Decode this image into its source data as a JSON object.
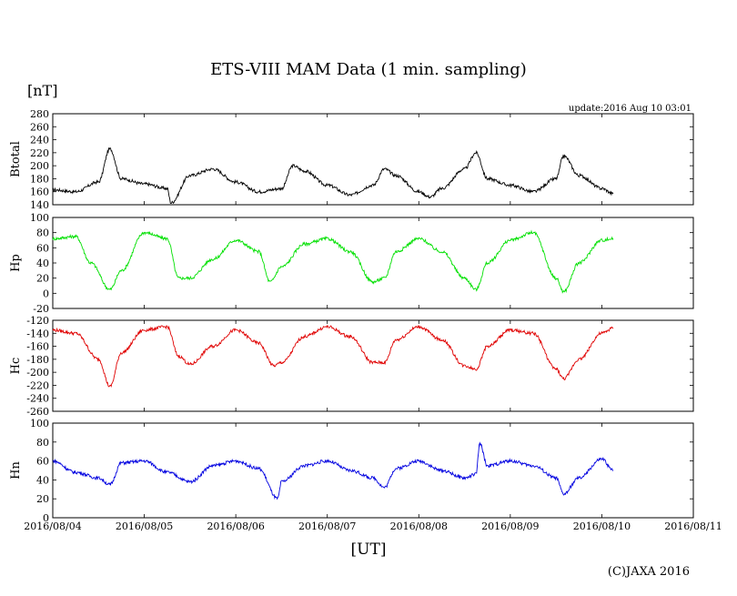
{
  "title": "ETS-VIII MAM Data (1 min. sampling)",
  "yunit": "[nT]",
  "update": "update:2016 Aug 10 03:01",
  "xunit": "[UT]",
  "copyright": "(C)JAXA 2016",
  "chart_data": [
    {
      "type": "line",
      "ylabel": "Btotal",
      "ylim": [
        140,
        280
      ],
      "yticks": [
        140,
        160,
        180,
        200,
        220,
        240,
        260,
        280
      ],
      "color": "#000000",
      "x": [
        "2016/08/04 00:00",
        "2016/08/04 06:00",
        "2016/08/04 12:00",
        "2016/08/04 15:00",
        "2016/08/04 18:00",
        "2016/08/05 00:00",
        "2016/08/05 06:00",
        "2016/08/05 07:00",
        "2016/08/05 12:00",
        "2016/08/05 18:00",
        "2016/08/06 00:00",
        "2016/08/06 06:00",
        "2016/08/06 12:00",
        "2016/08/06 15:00",
        "2016/08/06 18:00",
        "2016/08/07 00:00",
        "2016/08/07 06:00",
        "2016/08/07 12:00",
        "2016/08/07 15:00",
        "2016/08/07 18:00",
        "2016/08/08 00:00",
        "2016/08/08 03:00",
        "2016/08/08 06:00",
        "2016/08/08 12:00",
        "2016/08/08 15:00",
        "2016/08/08 18:00",
        "2016/08/09 00:00",
        "2016/08/09 06:00",
        "2016/08/09 12:00",
        "2016/08/09 14:00",
        "2016/08/09 18:00",
        "2016/08/10 00:00",
        "2016/08/10 03:00"
      ],
      "values": [
        163,
        160,
        175,
        226,
        180,
        172,
        165,
        143,
        185,
        195,
        175,
        160,
        165,
        200,
        192,
        170,
        155,
        170,
        195,
        185,
        160,
        152,
        165,
        195,
        220,
        180,
        170,
        160,
        180,
        215,
        185,
        165,
        157
      ]
    },
    {
      "type": "line",
      "ylabel": "Hp",
      "ylim": [
        -20,
        100
      ],
      "yticks": [
        -20,
        0,
        20,
        40,
        60,
        80,
        100
      ],
      "color": "#00e000",
      "x": [
        "2016/08/04 00:00",
        "2016/08/04 06:00",
        "2016/08/04 10:00",
        "2016/08/04 15:00",
        "2016/08/04 18:00",
        "2016/08/05 00:00",
        "2016/08/05 06:00",
        "2016/08/05 09:00",
        "2016/08/05 12:00",
        "2016/08/05 18:00",
        "2016/08/06 00:00",
        "2016/08/06 06:00",
        "2016/08/06 09:00",
        "2016/08/06 12:00",
        "2016/08/06 18:00",
        "2016/08/07 00:00",
        "2016/08/07 06:00",
        "2016/08/07 12:00",
        "2016/08/07 15:00",
        "2016/08/07 18:00",
        "2016/08/08 00:00",
        "2016/08/08 06:00",
        "2016/08/08 12:00",
        "2016/08/08 15:00",
        "2016/08/08 18:00",
        "2016/08/09 00:00",
        "2016/08/09 06:00",
        "2016/08/09 12:00",
        "2016/08/09 14:00",
        "2016/08/09 18:00",
        "2016/08/10 00:00",
        "2016/08/10 03:00"
      ],
      "values": [
        72,
        75,
        40,
        5,
        30,
        80,
        72,
        20,
        20,
        45,
        70,
        55,
        15,
        35,
        65,
        72,
        55,
        15,
        20,
        55,
        72,
        55,
        20,
        5,
        40,
        70,
        80,
        20,
        2,
        40,
        70,
        72
      ]
    },
    {
      "type": "line",
      "ylabel": "Hc",
      "ylim": [
        -260,
        -120
      ],
      "yticks": [
        -260,
        -240,
        -220,
        -200,
        -180,
        -160,
        -140,
        -120
      ],
      "color": "#e00000",
      "x": [
        "2016/08/04 00:00",
        "2016/08/04 06:00",
        "2016/08/04 12:00",
        "2016/08/04 15:00",
        "2016/08/04 18:00",
        "2016/08/05 00:00",
        "2016/08/05 06:00",
        "2016/08/05 09:00",
        "2016/08/05 12:00",
        "2016/08/05 18:00",
        "2016/08/06 00:00",
        "2016/08/06 06:00",
        "2016/08/06 10:00",
        "2016/08/06 12:00",
        "2016/08/06 18:00",
        "2016/08/07 00:00",
        "2016/08/07 06:00",
        "2016/08/07 12:00",
        "2016/08/07 15:00",
        "2016/08/07 18:00",
        "2016/08/08 00:00",
        "2016/08/08 06:00",
        "2016/08/08 12:00",
        "2016/08/08 15:00",
        "2016/08/08 18:00",
        "2016/08/09 00:00",
        "2016/08/09 06:00",
        "2016/08/09 12:00",
        "2016/08/09 14:00",
        "2016/08/09 18:00",
        "2016/08/10 00:00",
        "2016/08/10 03:00"
      ],
      "values": [
        -135,
        -140,
        -180,
        -222,
        -170,
        -135,
        -130,
        -175,
        -188,
        -160,
        -135,
        -155,
        -190,
        -185,
        -145,
        -130,
        -145,
        -185,
        -185,
        -150,
        -130,
        -150,
        -190,
        -195,
        -160,
        -135,
        -140,
        -195,
        -210,
        -180,
        -140,
        -132
      ]
    },
    {
      "type": "line",
      "ylabel": "Hn",
      "ylim": [
        0,
        100
      ],
      "yticks": [
        0,
        20,
        40,
        60,
        80,
        100
      ],
      "color": "#0000e0",
      "x": [
        "2016/08/04 00:00",
        "2016/08/04 06:00",
        "2016/08/04 12:00",
        "2016/08/04 15:00",
        "2016/08/04 18:00",
        "2016/08/05 00:00",
        "2016/08/05 06:00",
        "2016/08/05 12:00",
        "2016/08/05 18:00",
        "2016/08/06 00:00",
        "2016/08/06 06:00",
        "2016/08/06 11:00",
        "2016/08/06 12:00",
        "2016/08/06 18:00",
        "2016/08/07 00:00",
        "2016/08/07 06:00",
        "2016/08/07 12:00",
        "2016/08/07 15:00",
        "2016/08/07 18:00",
        "2016/08/08 00:00",
        "2016/08/08 06:00",
        "2016/08/08 12:00",
        "2016/08/08 15:00",
        "2016/08/08 16:00",
        "2016/08/08 18:00",
        "2016/08/09 00:00",
        "2016/08/09 06:00",
        "2016/08/09 12:00",
        "2016/08/09 14:00",
        "2016/08/09 18:00",
        "2016/08/10 00:00",
        "2016/08/10 03:00"
      ],
      "values": [
        60,
        48,
        42,
        35,
        58,
        60,
        48,
        38,
        55,
        60,
        52,
        20,
        38,
        55,
        60,
        50,
        42,
        32,
        52,
        60,
        50,
        42,
        46,
        78,
        55,
        60,
        55,
        42,
        25,
        42,
        62,
        50
      ]
    }
  ],
  "xaxis": {
    "start": "2016/08/04",
    "end": "2016/08/11",
    "tick_labels": [
      "2016/08/04",
      "2016/08/05",
      "2016/08/06",
      "2016/08/07",
      "2016/08/08",
      "2016/08/09",
      "2016/08/10",
      "2016/08/11"
    ]
  }
}
